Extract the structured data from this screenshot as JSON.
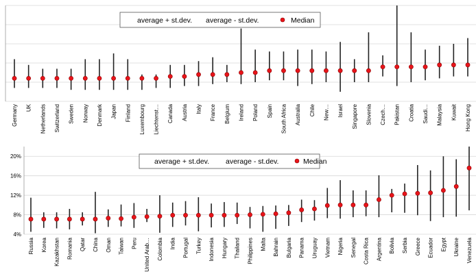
{
  "colors": {
    "whisker": "#222222",
    "median": "#e8141a",
    "median_edge": "#8b0000",
    "grid": "#d6d6d6",
    "axis": "#9a9a9a",
    "legend_border": "#555555"
  },
  "chart_data": [
    {
      "type": "errorbar",
      "legend": {
        "plus": "average + st.dev.",
        "minus": "average - st.dev.",
        "median": "Median",
        "placement": "top-center"
      },
      "ylim": [
        0,
        50
      ],
      "grid": true,
      "y_tick_labels_shown": false,
      "categories": [
        "Germany",
        "UK",
        "Netherlands",
        "Switzerland",
        "Sweden",
        "Norway",
        "Denmark",
        "Japan",
        "Finland",
        "Luxembourg",
        "Liechtenst…",
        "Canada",
        "Austria",
        "Italy",
        "France",
        "Belgium",
        "Ireland",
        "Poland",
        "Spain",
        "South Africa",
        "Australia",
        "Chile",
        "New…",
        "Israel",
        "Singapore",
        "Slovenia",
        "Czech…",
        "Pakistan",
        "Croatia",
        "Saudi…",
        "Malaysia",
        "Kuwait",
        "Hong Kong"
      ],
      "series": [
        {
          "name": "average + st.dev.",
          "values": [
            22,
            19,
            17,
            17,
            17,
            22,
            22,
            25,
            22,
            14,
            14,
            19,
            19,
            21,
            23,
            19,
            38,
            27,
            26,
            26,
            27,
            27,
            26,
            31,
            22,
            36,
            24,
            50,
            36,
            27,
            29,
            30,
            33
          ]
        },
        {
          "name": "average - st.dev.",
          "values": [
            7,
            7,
            7,
            7,
            6,
            6,
            6,
            6,
            6,
            6,
            7,
            7,
            8,
            8,
            9,
            10,
            9,
            10,
            11,
            11,
            8,
            9,
            10,
            5,
            10,
            10,
            13,
            8,
            10,
            11,
            12,
            13,
            13
          ]
        },
        {
          "name": "Median",
          "values": [
            12,
            12,
            12,
            12,
            12,
            12,
            12,
            12,
            12,
            12,
            12,
            13,
            13,
            14,
            14,
            14,
            15,
            15,
            16,
            16,
            16,
            16,
            16,
            16,
            16,
            16,
            18,
            18,
            18,
            18,
            19,
            19,
            19
          ]
        }
      ]
    },
    {
      "type": "errorbar",
      "legend": {
        "plus": "average + st.dev.",
        "minus": "average - st.dev.",
        "median": "Median",
        "placement": "top-center"
      },
      "ylim": [
        4,
        22
      ],
      "y_ticks": [
        4,
        8,
        12,
        16,
        20
      ],
      "y_tick_labels": [
        "4%",
        "8%",
        "12%",
        "16%",
        "20%"
      ],
      "grid": true,
      "categories": [
        "Russia",
        "Korea",
        "Kazakhstan",
        "Romania",
        "Qatar",
        "China",
        "Oman",
        "Taiwan",
        "Peru",
        "United Arab…",
        "Colombia",
        "India",
        "Portugal",
        "Turkey",
        "Indonesia",
        "Hungary",
        "Thailand",
        "Philippines",
        "Malta",
        "Bahrain",
        "Bulgaria",
        "Panama",
        "Uruguay",
        "Vietnam",
        "Nigeria",
        "Senegal",
        "Costa Rica",
        "Argentina",
        "Bolivia",
        "Serbia",
        "Greece",
        "Ecuador",
        "Egypt",
        "Ukraine",
        "Venezuela"
      ],
      "series": [
        {
          "name": "average + st.dev.",
          "values": [
            11.5,
            8.5,
            8.5,
            9.2,
            8.5,
            12.7,
            9.1,
            10.1,
            10.4,
            9.2,
            12.0,
            10.5,
            10.8,
            11.6,
            10.3,
            10.6,
            10.5,
            9.6,
            9.8,
            9.9,
            10.0,
            11.1,
            11.0,
            13.5,
            15.1,
            13.0,
            13.0,
            16.1,
            13.3,
            14.4,
            18.2,
            17.1,
            20.0,
            19.4,
            22.0
          ]
        },
        {
          "name": "average - st.dev.",
          "values": [
            4.5,
            5.3,
            5.2,
            5.0,
            5.8,
            4.2,
            5.5,
            5.6,
            5.3,
            6.5,
            4.3,
            5.5,
            5.8,
            4.6,
            5.4,
            5.5,
            6.1,
            5.2,
            4.5,
            5.1,
            5.7,
            6.5,
            6.8,
            7.3,
            7.2,
            7.5,
            7.7,
            7.5,
            8.5,
            8.4,
            7.9,
            6.7,
            7.5,
            7.6,
            8.9
          ]
        },
        {
          "name": "Median",
          "values": [
            7.1,
            7.1,
            7.1,
            7.1,
            7.1,
            7.1,
            7.3,
            7.2,
            7.5,
            7.6,
            7.7,
            7.9,
            7.9,
            7.9,
            7.9,
            7.9,
            7.9,
            8.0,
            8.1,
            8.2,
            8.4,
            9.0,
            9.2,
            9.9,
            10.0,
            10.0,
            10.0,
            11.1,
            12.0,
            12.3,
            12.4,
            12.5,
            13.0,
            13.8,
            17.6
          ]
        }
      ]
    }
  ]
}
